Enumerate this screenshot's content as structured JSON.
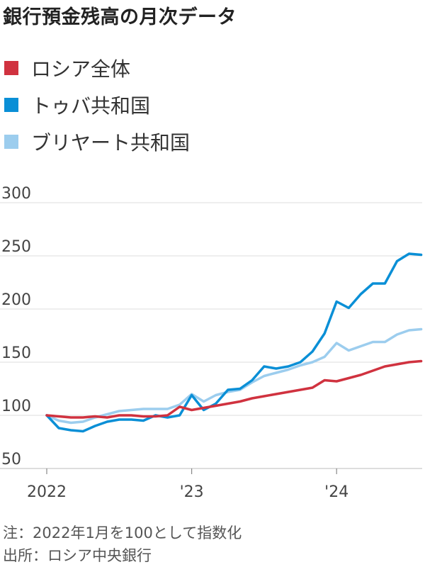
{
  "title": "銀行預金残高の月次データ",
  "legend": [
    {
      "label": "ロシア全体",
      "color": "#d0323f"
    },
    {
      "label": "トゥバ共和国",
      "color": "#0a8fd6"
    },
    {
      "label": "ブリヤート共和国",
      "color": "#9ccdee"
    }
  ],
  "footnote": {
    "note": "注：2022年1月を100として指数化",
    "source": "出所：ロシア中央銀行"
  },
  "chart_data": {
    "type": "line",
    "ylim": [
      50,
      300
    ],
    "yticks": [
      50,
      100,
      150,
      200,
      250,
      300
    ],
    "xticks": [
      {
        "label": "2022",
        "x": "2022-01"
      },
      {
        "label": "'23",
        "x": "2023-01"
      },
      {
        "label": "'24",
        "x": "2024-01"
      }
    ],
    "x": [
      "2022-01",
      "2022-02",
      "2022-03",
      "2022-04",
      "2022-05",
      "2022-06",
      "2022-07",
      "2022-08",
      "2022-09",
      "2022-10",
      "2022-11",
      "2022-12",
      "2023-01",
      "2023-02",
      "2023-03",
      "2023-04",
      "2023-05",
      "2023-06",
      "2023-07",
      "2023-08",
      "2023-09",
      "2023-10",
      "2023-11",
      "2023-12",
      "2024-01",
      "2024-02",
      "2024-03",
      "2024-04",
      "2024-05",
      "2024-06",
      "2024-07",
      "2024-08"
    ],
    "series": [
      {
        "name": "ロシア全体",
        "color": "#d0323f",
        "values": [
          100,
          99,
          98,
          98,
          99,
          98,
          100,
          100,
          99,
          99,
          100,
          108,
          105,
          107,
          109,
          111,
          113,
          116,
          118,
          120,
          122,
          124,
          126,
          133,
          132,
          135,
          138,
          142,
          146,
          148,
          150,
          151
        ]
      },
      {
        "name": "トゥバ共和国",
        "color": "#0a8fd6",
        "values": [
          100,
          88,
          86,
          85,
          90,
          94,
          96,
          96,
          95,
          100,
          98,
          100,
          119,
          105,
          111,
          124,
          125,
          133,
          146,
          144,
          146,
          150,
          160,
          177,
          207,
          201,
          214,
          224,
          224,
          245,
          252,
          251
        ]
      },
      {
        "name": "ブリヤート共和国",
        "color": "#9ccdee",
        "values": [
          100,
          95,
          93,
          94,
          98,
          101,
          104,
          105,
          106,
          106,
          106,
          110,
          120,
          113,
          119,
          122,
          124,
          131,
          137,
          140,
          143,
          147,
          150,
          155,
          168,
          161,
          165,
          169,
          169,
          176,
          180,
          181
        ]
      }
    ]
  }
}
